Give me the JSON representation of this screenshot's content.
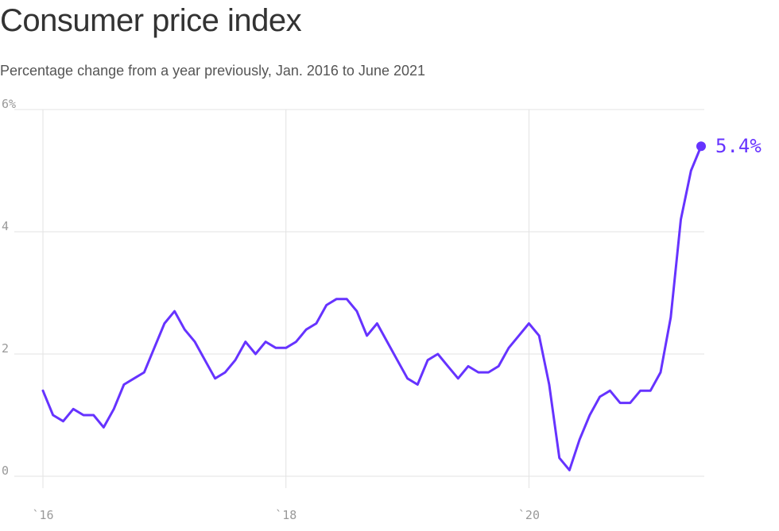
{
  "chart_data": {
    "type": "line",
    "title": "Consumer price index",
    "subtitle": "Percentage change from a year previously, Jan. 2016 to June 2021",
    "xlabel": "",
    "ylabel": "",
    "x_start": "2016-01",
    "x_end": "2021-06",
    "x_ticks": [
      {
        "value": "2016-01",
        "label": "`16"
      },
      {
        "value": "2018-01",
        "label": "`18"
      },
      {
        "value": "2020-01",
        "label": "`20"
      }
    ],
    "y_ticks": [
      {
        "value": 0,
        "label": "0"
      },
      {
        "value": 2,
        "label": "2"
      },
      {
        "value": 4,
        "label": "4"
      },
      {
        "value": 6,
        "label": "6%"
      }
    ],
    "ylim": [
      0,
      6
    ],
    "grid": true,
    "line_color": "#6633ff",
    "series": [
      {
        "x": [
          "2016-01",
          "2016-02",
          "2016-03",
          "2016-04",
          "2016-05",
          "2016-06",
          "2016-07",
          "2016-08",
          "2016-09",
          "2016-10",
          "2016-11",
          "2016-12",
          "2017-01",
          "2017-02",
          "2017-03",
          "2017-04",
          "2017-05",
          "2017-06",
          "2017-07",
          "2017-08",
          "2017-09",
          "2017-10",
          "2017-11",
          "2017-12",
          "2018-01",
          "2018-02",
          "2018-03",
          "2018-04",
          "2018-05",
          "2018-06",
          "2018-07",
          "2018-08",
          "2018-09",
          "2018-10",
          "2018-11",
          "2018-12",
          "2019-01",
          "2019-02",
          "2019-03",
          "2019-04",
          "2019-05",
          "2019-06",
          "2019-07",
          "2019-08",
          "2019-09",
          "2019-10",
          "2019-11",
          "2019-12",
          "2020-01",
          "2020-02",
          "2020-03",
          "2020-04",
          "2020-05",
          "2020-06",
          "2020-07",
          "2020-08",
          "2020-09",
          "2020-10",
          "2020-11",
          "2020-12",
          "2021-01",
          "2021-02",
          "2021-03",
          "2021-04",
          "2021-05",
          "2021-06"
        ],
        "values": [
          1.4,
          1.0,
          0.9,
          1.1,
          1.0,
          1.0,
          0.8,
          1.1,
          1.5,
          1.6,
          1.7,
          2.1,
          2.5,
          2.7,
          2.4,
          2.2,
          1.9,
          1.6,
          1.7,
          1.9,
          2.2,
          2.0,
          2.2,
          2.1,
          2.1,
          2.2,
          2.4,
          2.5,
          2.8,
          2.9,
          2.9,
          2.7,
          2.3,
          2.5,
          2.2,
          1.9,
          1.6,
          1.5,
          1.9,
          2.0,
          1.8,
          1.6,
          1.8,
          1.7,
          1.7,
          1.8,
          2.1,
          2.3,
          2.5,
          2.3,
          1.5,
          0.3,
          0.1,
          0.6,
          1.0,
          1.3,
          1.4,
          1.2,
          1.2,
          1.4,
          1.4,
          1.7,
          2.6,
          4.2,
          5.0,
          5.4
        ]
      }
    ],
    "end_label": "5.4%"
  }
}
